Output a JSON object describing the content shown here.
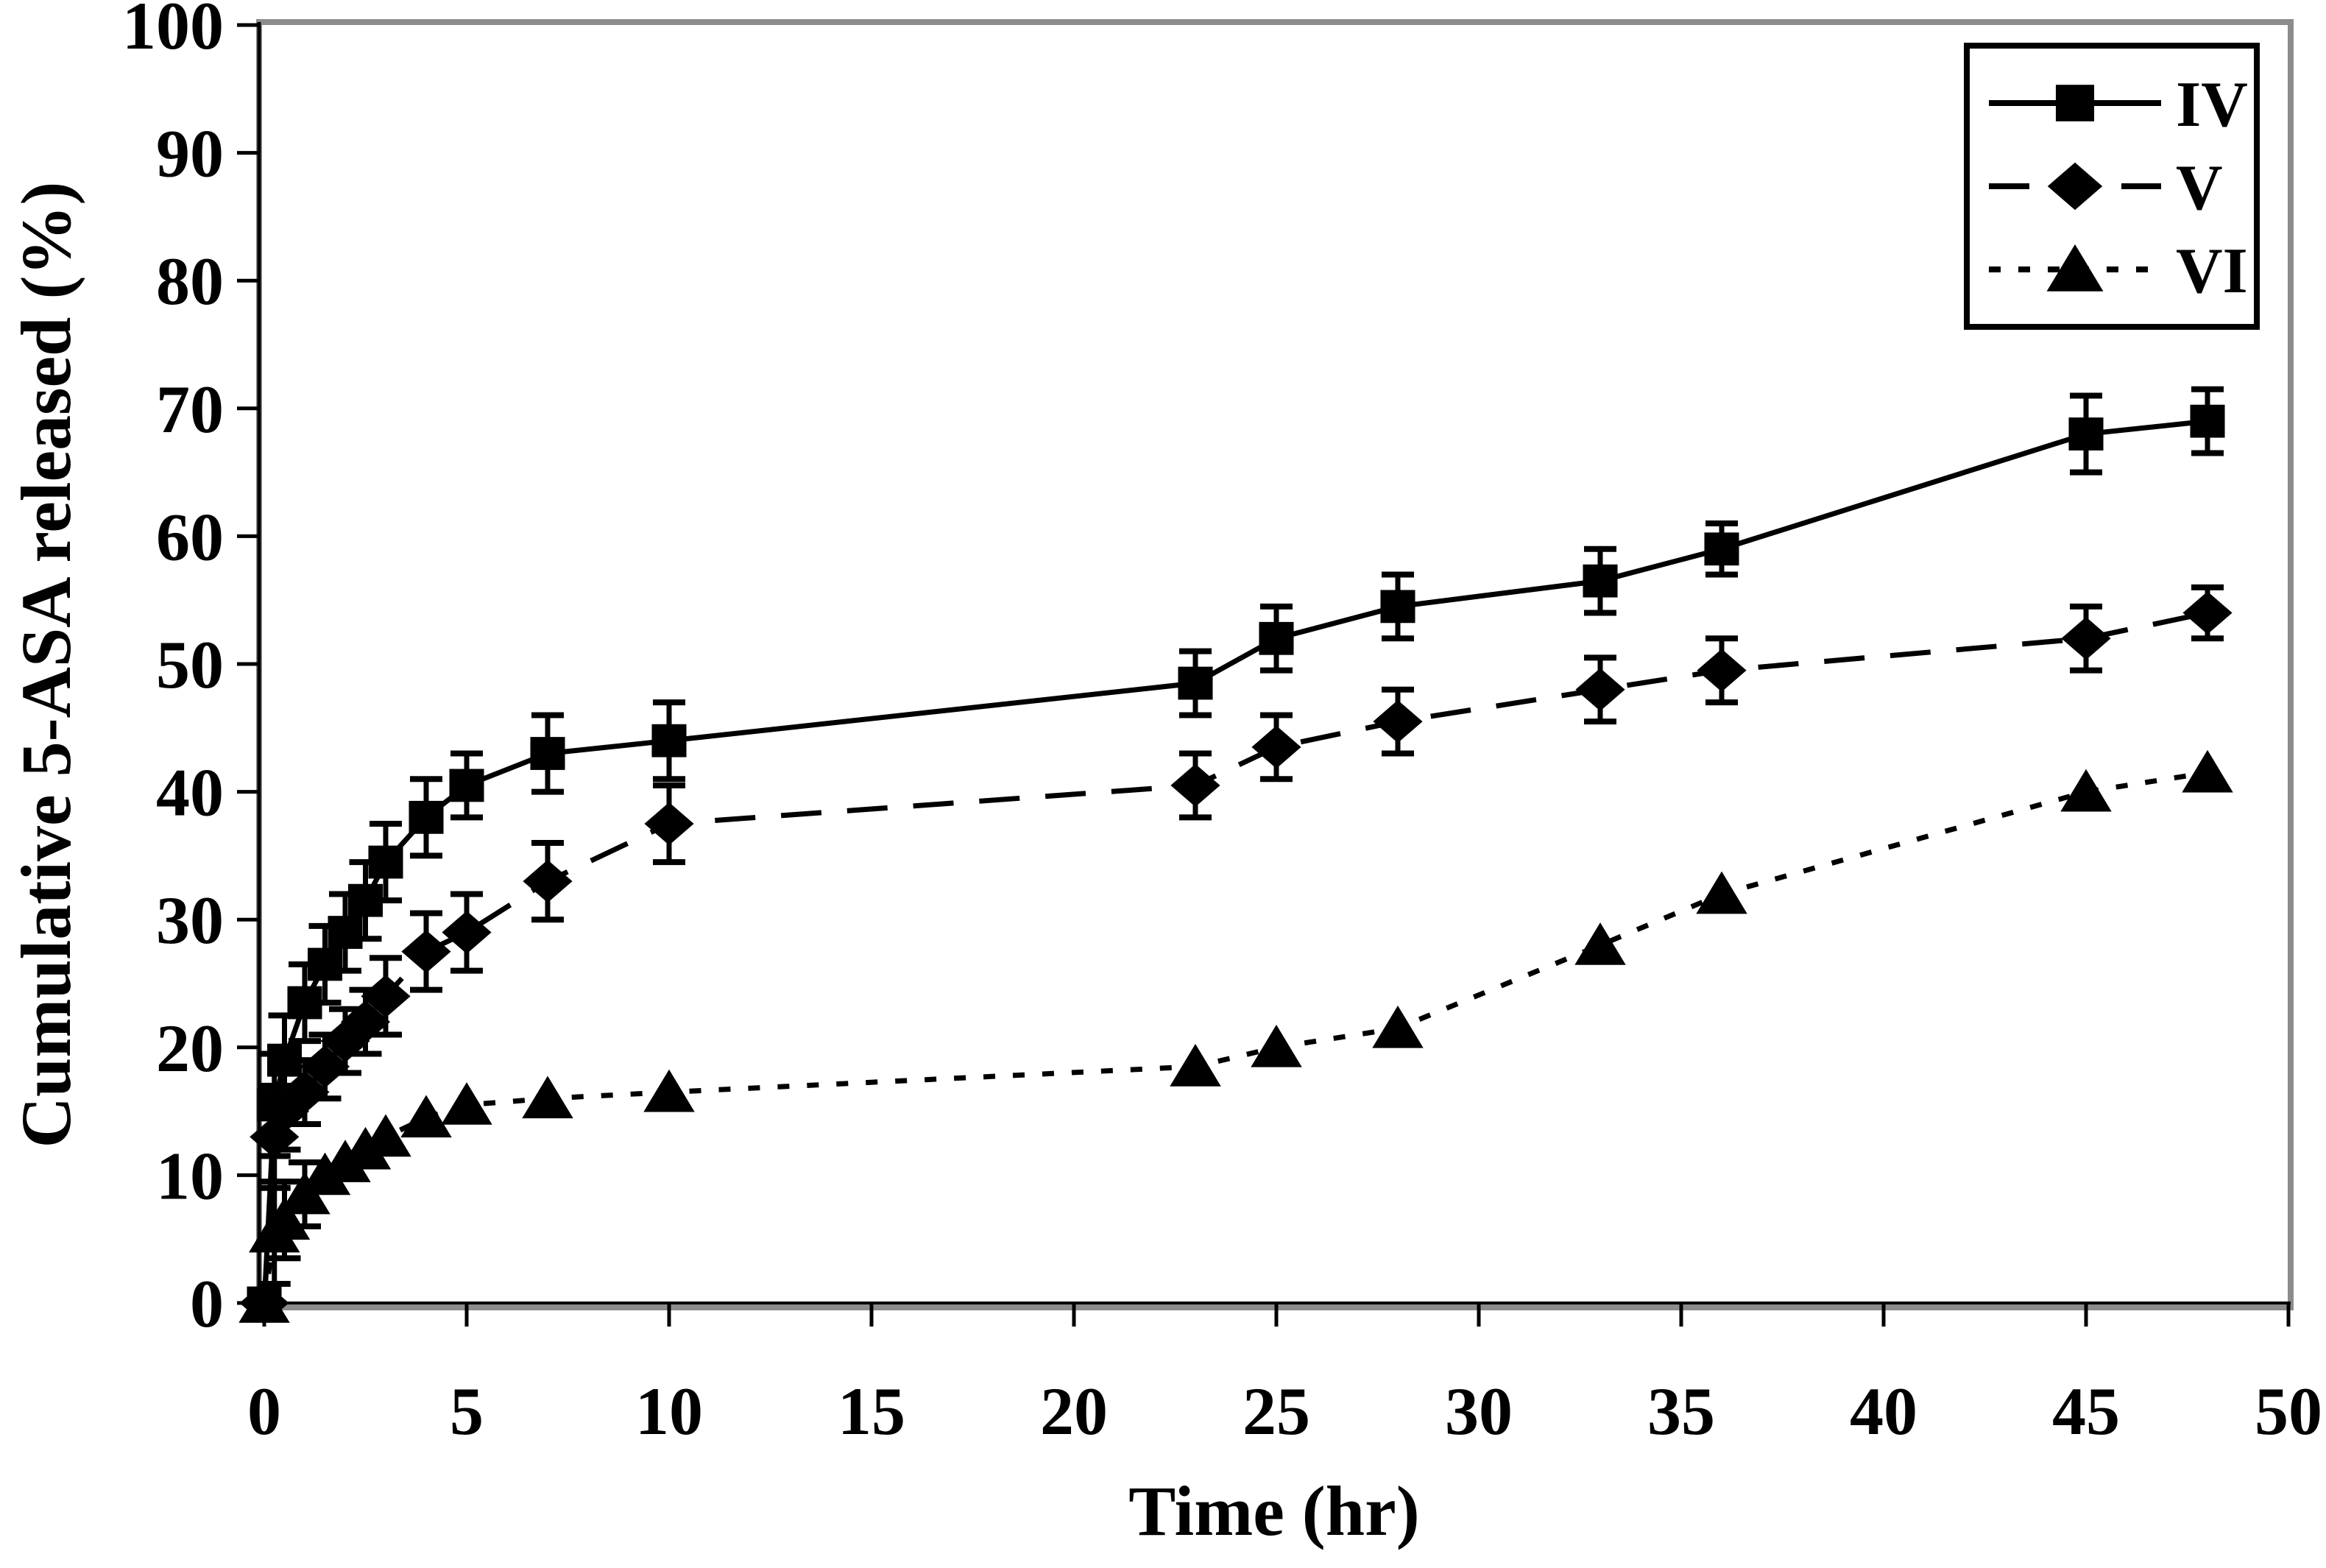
{
  "chart_data": {
    "type": "line",
    "title": "",
    "xlabel": "Time (hr)",
    "ylabel": "Cumulative 5-ASA released (%)",
    "xlim": [
      0,
      50
    ],
    "ylim": [
      0,
      100
    ],
    "x_ticks": [
      0,
      5,
      10,
      15,
      20,
      25,
      30,
      35,
      40,
      45,
      50
    ],
    "y_ticks": [
      0,
      10,
      20,
      30,
      40,
      50,
      60,
      70,
      80,
      90,
      100
    ],
    "grid": "off",
    "legend_position": "top-right-inside",
    "x": [
      0,
      0.25,
      0.5,
      1,
      1.5,
      2,
      2.5,
      3,
      4,
      5,
      7,
      10,
      23,
      25,
      28,
      33,
      36,
      45,
      48
    ],
    "series": [
      {
        "name": "IV",
        "marker": "square",
        "line_style": "solid",
        "color": "#000000",
        "values": [
          0,
          15.5,
          19,
          23.5,
          26.5,
          29,
          31.5,
          34.5,
          38,
          40.5,
          43,
          44,
          48.5,
          52,
          54.5,
          56.5,
          59,
          68,
          69
        ],
        "errors": [
          0,
          4,
          3.5,
          3,
          3,
          3,
          3,
          3,
          3,
          2.5,
          3,
          3,
          2.5,
          2.5,
          2.5,
          2.5,
          2,
          3,
          2.5
        ]
      },
      {
        "name": "V",
        "marker": "diamond",
        "line_style": "dashed",
        "color": "#000000",
        "values": [
          0,
          13,
          15,
          16.5,
          18.5,
          20.5,
          22,
          24,
          27.5,
          29,
          33,
          37.5,
          40.5,
          43.5,
          45.5,
          48,
          49.5,
          52,
          54
        ],
        "errors": [
          0,
          4,
          3,
          2.5,
          2.5,
          2.5,
          2.5,
          3,
          3,
          3,
          3,
          3,
          2.5,
          2.5,
          2.5,
          2.5,
          2.5,
          2.5,
          2
        ]
      },
      {
        "name": "VI",
        "marker": "triangle",
        "line_style": "dotted",
        "color": "#000000",
        "values": [
          0,
          5.5,
          6.5,
          8.5,
          10,
          11,
          12,
          13,
          14.5,
          15.5,
          16,
          16.5,
          18.5,
          20,
          21.5,
          28,
          32,
          40,
          41.5
        ],
        "errors": [
          0,
          4,
          3,
          2.5,
          0,
          0,
          0,
          0,
          0,
          0,
          0,
          0,
          0,
          0,
          0,
          0,
          0,
          0,
          0
        ]
      }
    ],
    "frame_color": "#8c8c8c",
    "axis_color": "#000000",
    "background": "#ffffff"
  },
  "legend": {
    "items": [
      "IV",
      "V",
      "VI"
    ]
  },
  "axes": {
    "x_title": "Time (hr)",
    "y_title": "Cumulative 5-ASA released (%)"
  }
}
